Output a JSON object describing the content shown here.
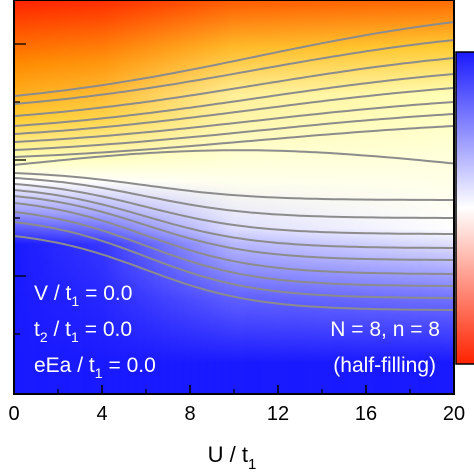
{
  "chart_data": {
    "type": "heatmap",
    "xlabel": "U / t",
    "xlabel_sub": "1",
    "xlim": [
      0,
      20
    ],
    "x_ticks": [
      0,
      4,
      8,
      12,
      16,
      20
    ],
    "colormap": [
      "#1a1aff",
      "#ffffff",
      "#ffffb8",
      "#ffcc33",
      "#ff2200"
    ],
    "contour_color": "#8c8c8c",
    "inset_parameters": [
      {
        "label": "V / t",
        "sub": "1",
        "value": "= 0.0"
      },
      {
        "label": "t",
        "sub": "2",
        "label_after": " / t",
        "sub2": "1",
        "value": "= 0.0"
      },
      {
        "label": "eEa / t",
        "sub": "1",
        "value": "= 0.0"
      }
    ],
    "system_label": "N = 8, n = 8",
    "filling_label": "(half-filling)"
  }
}
